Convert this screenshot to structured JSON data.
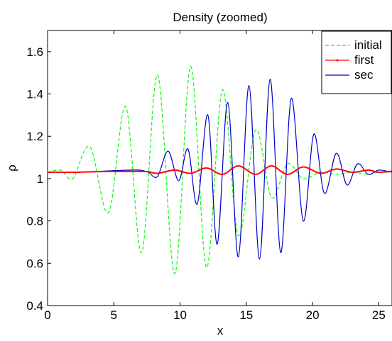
{
  "chart_data": {
    "type": "line",
    "title": "Density (zoomed)",
    "xlabel": "x",
    "ylabel": "ρ",
    "xlim": [
      0,
      26
    ],
    "ylim": [
      0.4,
      1.7
    ],
    "xticks": [
      0,
      5,
      10,
      15,
      20,
      25
    ],
    "yticks": [
      0.4,
      0.6,
      0.8,
      1,
      1.2,
      1.4,
      1.6
    ],
    "xtick_labels": [
      "0",
      "5",
      "10",
      "15",
      "20",
      "25"
    ],
    "ytick_labels": [
      "0.4",
      "0.6",
      "0.8",
      "1",
      "1.2",
      "1.4",
      "1.6"
    ],
    "grid": false,
    "legend_position": "top-right",
    "series": [
      {
        "name": "initial",
        "color": "#00ff00",
        "style": "dashed",
        "x": [
          0,
          1.0,
          1.9,
          3.2,
          4.6,
          5.9,
          7.1,
          8.3,
          9.6,
          10.8,
          12.0,
          13.2,
          14.4,
          15.7,
          16.9,
          18.1,
          19.3,
          20.6,
          21.8,
          23.0,
          24.2,
          25.0,
          26.0
        ],
        "y": [
          1.03,
          1.04,
          1.0,
          1.15,
          0.84,
          1.34,
          0.65,
          1.49,
          0.55,
          1.53,
          0.58,
          1.42,
          0.73,
          1.23,
          0.91,
          1.07,
          1.0,
          1.03,
          1.02,
          1.03,
          1.02,
          1.03,
          1.03
        ]
      },
      {
        "name": "first",
        "color": "#ff0000",
        "style": "solid-markers",
        "x": [
          0,
          2,
          4,
          6,
          7.5,
          8.3,
          9.6,
          10.8,
          12.0,
          13.2,
          14.4,
          15.7,
          16.9,
          18.1,
          19.3,
          20.6,
          21.8,
          23.0,
          24.2,
          25.0,
          26.0
        ],
        "y": [
          1.03,
          1.03,
          1.033,
          1.034,
          1.033,
          1.025,
          1.04,
          1.025,
          1.05,
          1.02,
          1.06,
          1.02,
          1.06,
          1.02,
          1.055,
          1.025,
          1.045,
          1.03,
          1.04,
          1.03,
          1.035
        ]
      },
      {
        "name": "sec",
        "color": "#0000cc",
        "style": "solid",
        "x": [
          0,
          2,
          4,
          6,
          7.0,
          7.6,
          8.3,
          9.1,
          9.9,
          10.6,
          11.3,
          12.1,
          12.8,
          13.6,
          14.4,
          15.2,
          16.0,
          16.8,
          17.6,
          18.4,
          19.3,
          20.1,
          20.9,
          21.8,
          22.6,
          23.4,
          24.2,
          25.0,
          26.0
        ],
        "y": [
          1.03,
          1.03,
          1.035,
          1.04,
          1.04,
          1.03,
          1.01,
          1.13,
          0.99,
          1.14,
          0.88,
          1.3,
          0.69,
          1.36,
          0.63,
          1.44,
          0.62,
          1.47,
          0.65,
          1.38,
          0.8,
          1.21,
          0.93,
          1.12,
          0.97,
          1.07,
          1.02,
          1.04,
          1.03
        ]
      }
    ]
  }
}
